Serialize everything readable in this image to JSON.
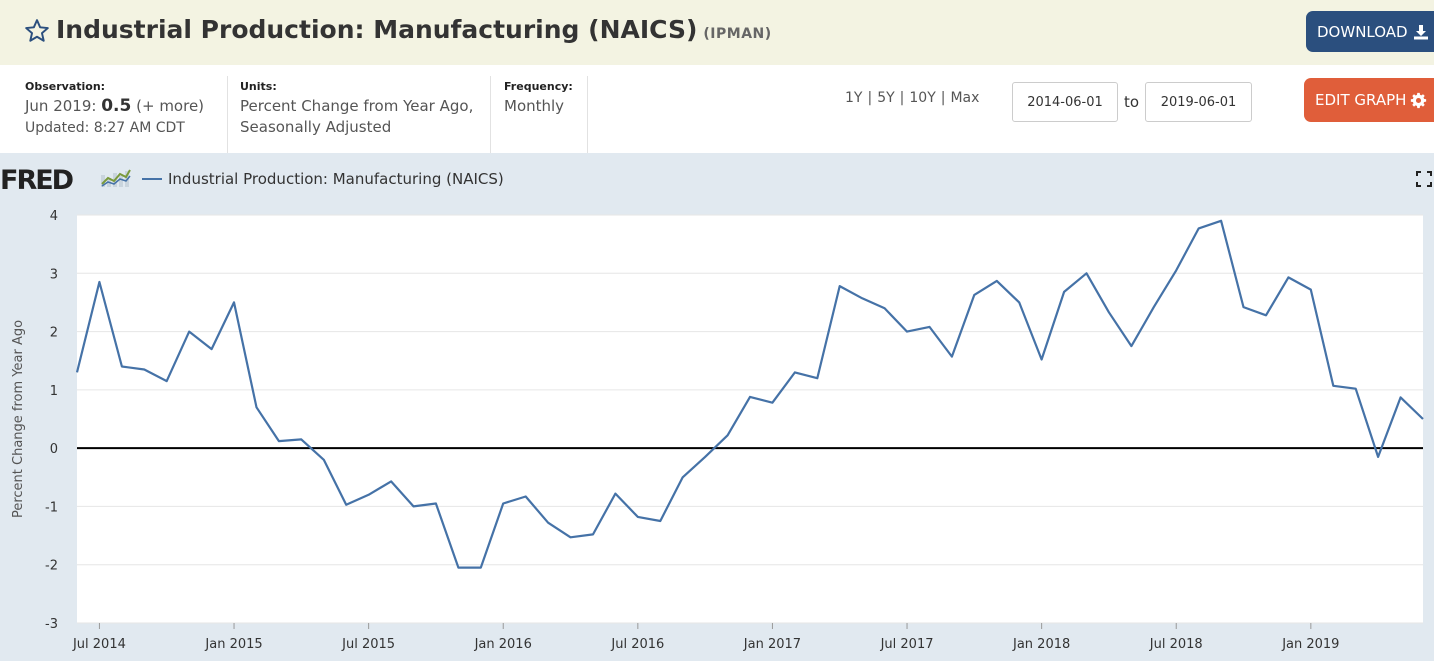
{
  "header": {
    "title": "Industrial Production: Manufacturing (NAICS)",
    "series_code": "(IPMAN)",
    "download_label": "DOWNLOAD"
  },
  "meta": {
    "observation_label": "Observation:",
    "observation_period": "Jun 2019:",
    "observation_value": "0.5",
    "observation_more": "(+ more)",
    "updated": "Updated: 8:27 AM CDT",
    "units_label": "Units:",
    "units_line1": "Percent Change from Year Ago,",
    "units_line2": "Seasonally Adjusted",
    "frequency_label": "Frequency:",
    "frequency_value": "Monthly"
  },
  "controls": {
    "ranges": [
      "1Y",
      "5Y",
      "10Y",
      "Max"
    ],
    "start_date": "2014-06-01",
    "to_label": "to",
    "end_date": "2019-06-01",
    "edit_label": "EDIT GRAPH"
  },
  "chart_panel": {
    "logo_text": "FRED",
    "legend_label": "Industrial Production: Manufacturing (NAICS)",
    "line_color": "#4572a7"
  },
  "chart_data": {
    "type": "line",
    "title": "",
    "xlabel": "",
    "ylabel": "Percent Change from Year Ago",
    "ylim": [
      -3,
      4
    ],
    "yticks": [
      4,
      3,
      2,
      1,
      0,
      -1,
      -2,
      -3
    ],
    "xtick_labels": [
      "Jul 2014",
      "Jan 2015",
      "Jul 2015",
      "Jan 2016",
      "Jul 2016",
      "Jan 2017",
      "Jul 2017",
      "Jan 2018",
      "Jul 2018",
      "Jan 2019"
    ],
    "x_start": "2014-06",
    "x_end": "2019-06",
    "series": [
      {
        "name": "Industrial Production: Manufacturing (NAICS)",
        "x": [
          "2014-06",
          "2014-07",
          "2014-08",
          "2014-09",
          "2014-10",
          "2014-11",
          "2014-12",
          "2015-01",
          "2015-02",
          "2015-03",
          "2015-04",
          "2015-05",
          "2015-06",
          "2015-07",
          "2015-08",
          "2015-09",
          "2015-10",
          "2015-11",
          "2015-12",
          "2016-01",
          "2016-02",
          "2016-03",
          "2016-04",
          "2016-05",
          "2016-06",
          "2016-07",
          "2016-08",
          "2016-09",
          "2016-10",
          "2016-11",
          "2016-12",
          "2017-01",
          "2017-02",
          "2017-03",
          "2017-04",
          "2017-05",
          "2017-06",
          "2017-07",
          "2017-08",
          "2017-09",
          "2017-10",
          "2017-11",
          "2017-12",
          "2018-01",
          "2018-02",
          "2018-03",
          "2018-04",
          "2018-05",
          "2018-06",
          "2018-07",
          "2018-08",
          "2018-09",
          "2018-10",
          "2018-11",
          "2018-12",
          "2019-01",
          "2019-02",
          "2019-03",
          "2019-04",
          "2019-05",
          "2019-06"
        ],
        "values": [
          1.3,
          2.85,
          1.4,
          1.35,
          1.15,
          2.0,
          1.7,
          2.5,
          0.7,
          0.12,
          0.15,
          -0.2,
          -0.97,
          -0.8,
          -0.57,
          -1.0,
          -0.95,
          -2.05,
          -2.05,
          -0.95,
          -0.83,
          -1.28,
          -1.53,
          -1.48,
          -0.78,
          -1.18,
          -1.25,
          -0.5,
          -0.15,
          0.22,
          0.88,
          0.78,
          1.3,
          1.2,
          2.78,
          2.57,
          2.4,
          2.0,
          2.08,
          1.57,
          2.63,
          2.87,
          2.5,
          1.52,
          2.68,
          3.0,
          2.33,
          1.75,
          2.42,
          3.05,
          3.77,
          3.9,
          2.42,
          2.28,
          2.93,
          2.72,
          1.07,
          1.02,
          -0.15,
          0.87,
          0.5
        ]
      }
    ],
    "grid": "horizontal",
    "legend_position": "top-left"
  }
}
